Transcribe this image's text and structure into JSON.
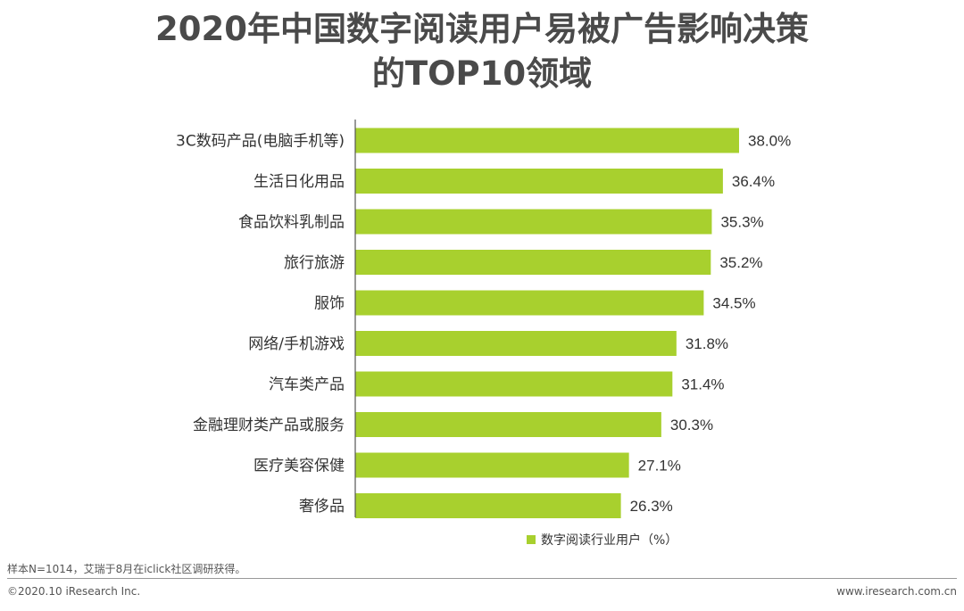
{
  "title_lines": [
    "2020年中国数字阅读用户易被广告影响决策",
    "的TOP10领域"
  ],
  "chart_data": {
    "type": "bar",
    "orientation": "horizontal",
    "title": "2020年中国数字阅读用户易被广告影响决策的TOP10领域",
    "categories": [
      "3C数码产品(电脑手机等)",
      "生活日化用品",
      "食品饮料乳制品",
      "旅行旅游",
      "服饰",
      "网络/手机游戏",
      "汽车类产品",
      "金融理财类产品或服务",
      "医疗美容保健",
      "奢侈品"
    ],
    "values": [
      38.0,
      36.4,
      35.3,
      35.2,
      34.5,
      31.8,
      31.4,
      30.3,
      27.1,
      26.3
    ],
    "value_labels": [
      "38.0%",
      "36.4%",
      "35.3%",
      "35.2%",
      "34.5%",
      "31.8%",
      "31.4%",
      "30.3%",
      "27.1%",
      "26.3%"
    ],
    "series_name": "数字阅读行业用户（%）",
    "xlim": [
      0,
      40
    ],
    "grid": false,
    "legend_position": "bottom-right",
    "bar_color": "#a8d02e"
  },
  "legend": {
    "label": "数字阅读行业用户（%）"
  },
  "footer": {
    "source": "样本N=1014，艾瑞于8月在iclick社区调研获得。",
    "copyright": "©2020.10 iResearch Inc.",
    "website": "www.iresearch.com.cn"
  }
}
